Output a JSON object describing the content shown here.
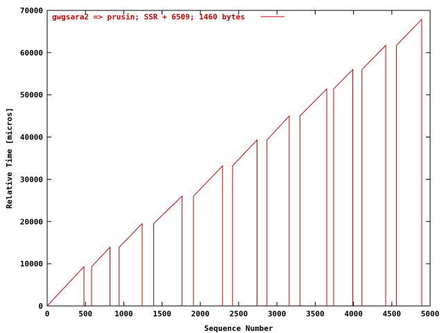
{
  "chart_data": {
    "type": "line",
    "title": "",
    "xlabel": "Sequence Number",
    "ylabel": "Relative Time [micros]",
    "xlim": [
      0,
      5000
    ],
    "ylim": [
      0,
      70000
    ],
    "xticks": [
      0,
      500,
      1000,
      1500,
      2000,
      2500,
      3000,
      3500,
      4000,
      4500,
      5000
    ],
    "yticks": [
      0,
      10000,
      20000,
      30000,
      40000,
      50000,
      60000,
      70000
    ],
    "grid": false,
    "legend_position": "top-left",
    "series": [
      {
        "name": "gwgsara2 => prusin; SSR + 6509; 1460 bytes",
        "color": "#cc0000",
        "segments": [
          {
            "x0": 0,
            "y0": 0,
            "x1": 480,
            "y1": 9300
          },
          {
            "x0": 580,
            "y0": 9300,
            "x1": 820,
            "y1": 13900
          },
          {
            "x0": 940,
            "y0": 13900,
            "x1": 1240,
            "y1": 19500
          },
          {
            "x0": 1390,
            "y0": 19500,
            "x1": 1760,
            "y1": 26000
          },
          {
            "x0": 1910,
            "y0": 26000,
            "x1": 2290,
            "y1": 33200
          },
          {
            "x0": 2420,
            "y0": 33200,
            "x1": 2740,
            "y1": 39300
          },
          {
            "x0": 2870,
            "y0": 39300,
            "x1": 3160,
            "y1": 45000
          },
          {
            "x0": 3300,
            "y0": 45000,
            "x1": 3650,
            "y1": 51400
          },
          {
            "x0": 3740,
            "y0": 51400,
            "x1": 3990,
            "y1": 56000
          },
          {
            "x0": 4110,
            "y0": 56000,
            "x1": 4420,
            "y1": 61700
          },
          {
            "x0": 4560,
            "y0": 61700,
            "x1": 4890,
            "y1": 67900
          }
        ]
      }
    ]
  }
}
